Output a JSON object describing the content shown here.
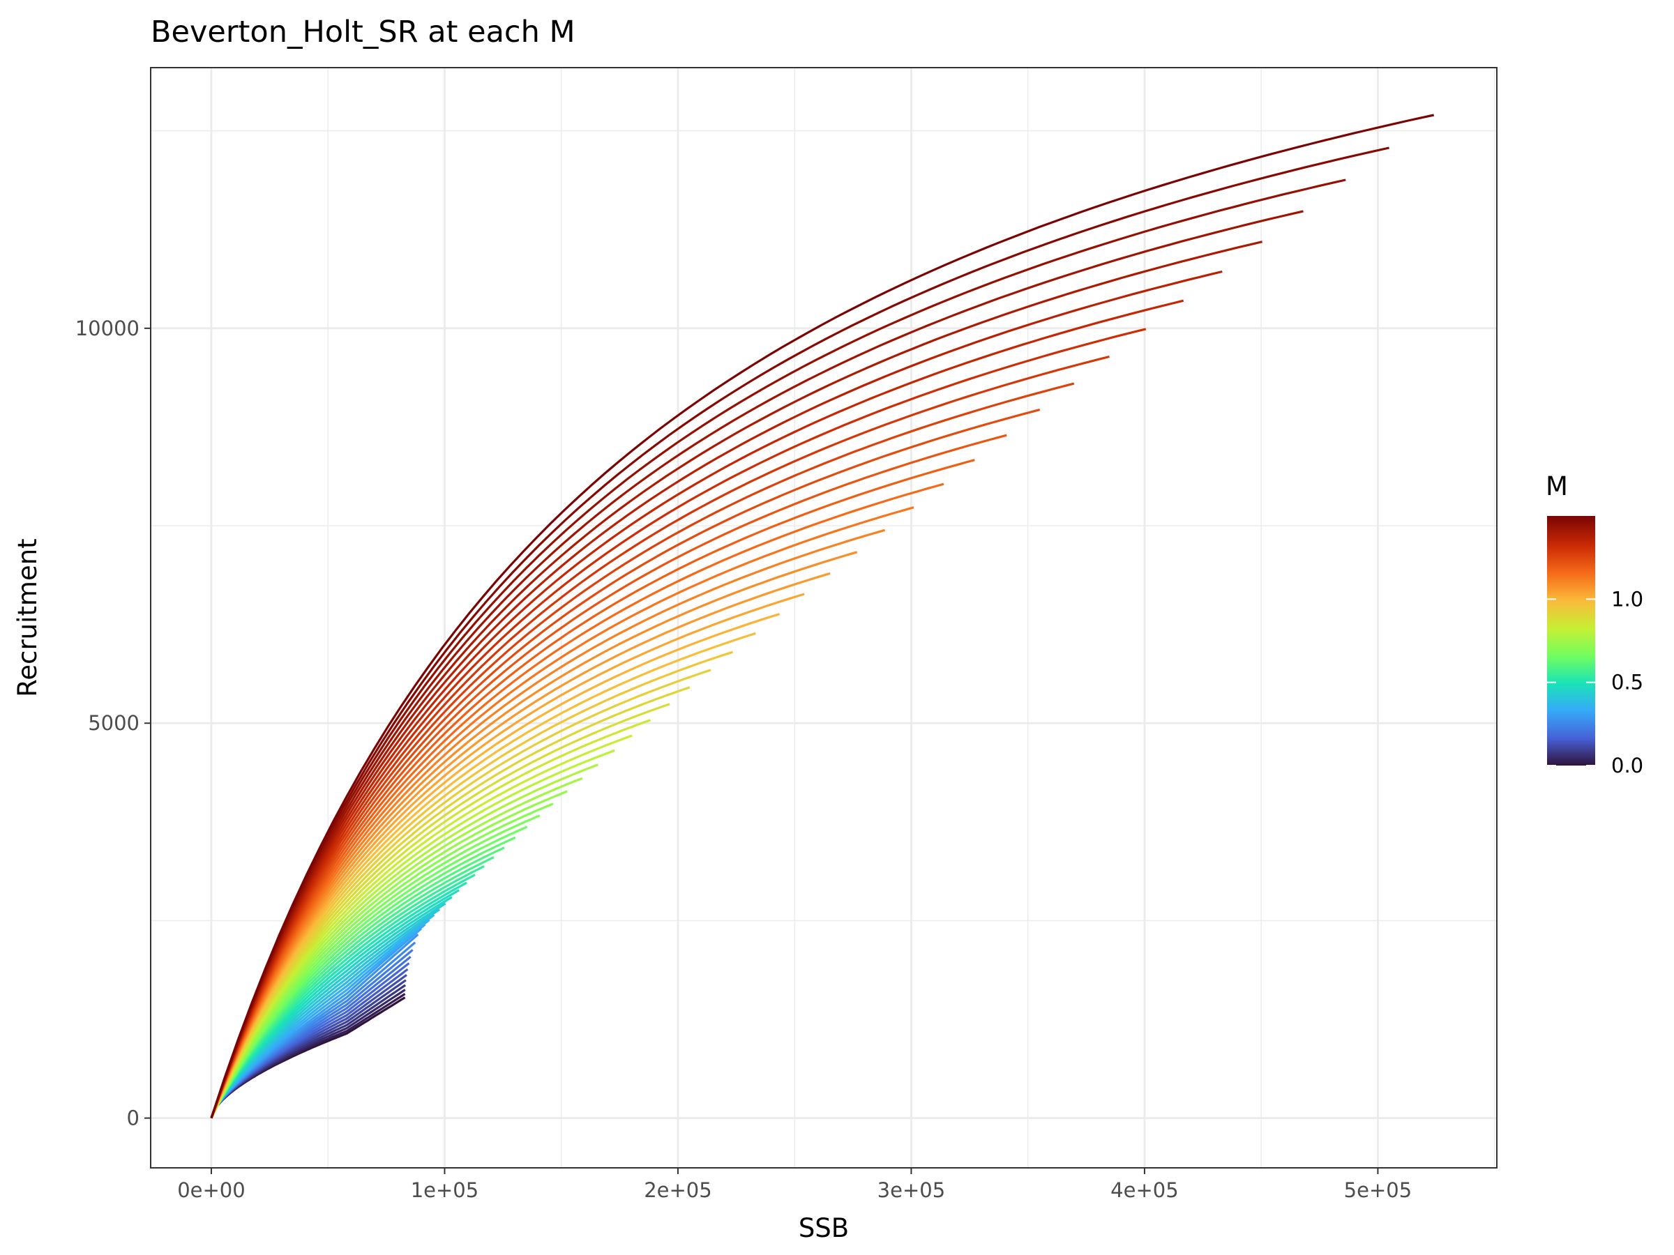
{
  "chart_data": {
    "type": "line",
    "title": "Beverton_Holt_SR at each M",
    "xlabel": "SSB",
    "ylabel": "Recruitment",
    "xlim": [
      -26000,
      551000
    ],
    "ylim": [
      -630,
      13300
    ],
    "x_ticks": [
      0,
      100000,
      200000,
      300000,
      400000,
      500000
    ],
    "x_tick_labels": [
      "0e+00",
      "1e+05",
      "2e+05",
      "3e+05",
      "4e+05",
      "5e+05"
    ],
    "y_ticks": [
      0,
      5000,
      10000
    ],
    "y_tick_labels": [
      "0",
      "5000",
      "10000"
    ],
    "grid": true,
    "legend": {
      "title": "M",
      "position": "right",
      "type": "colorbar",
      "range": [
        0,
        1.5
      ],
      "ticks": [
        0.0,
        0.5,
        1.0
      ],
      "tick_labels": [
        "0.0",
        "0.5",
        "1.0"
      ],
      "palette": [
        "#30123b",
        "#4662d7",
        "#36aaf9",
        "#1ae4b6",
        "#72fe5e",
        "#c7ef34",
        "#fabb3a",
        "#f66b19",
        "#cb2a04",
        "#7a0403"
      ]
    },
    "model": "Beverton-Holt: R = a*SSB/(1+b*SSB)",
    "series_summary": {
      "count": 60,
      "M_range": [
        0.0,
        1.5
      ],
      "endpoints_top_curves": [
        {
          "ssb_max": 524000,
          "r_max": 12700
        },
        {
          "ssb_max": 508000,
          "r_max": 12330
        },
        {
          "ssb_max": 492000,
          "r_max": 11950
        },
        {
          "ssb_max": 477000,
          "r_max": 11570
        },
        {
          "ssb_max": 463000,
          "r_max": 11240
        },
        {
          "ssb_max": 450000,
          "r_max": 10920
        },
        {
          "ssb_max": 437000,
          "r_max": 10580
        },
        {
          "ssb_max": 424000,
          "r_max": 10260
        },
        {
          "ssb_max": 412000,
          "r_max": 10000
        },
        {
          "ssb_max": 400000,
          "r_max": 9730
        },
        {
          "ssb_max": 389000,
          "r_max": 9470
        },
        {
          "ssb_max": 378000,
          "r_max": 9240
        },
        {
          "ssb_max": 367000,
          "r_max": 9000
        },
        {
          "ssb_max": 357000,
          "r_max": 8800
        },
        {
          "ssb_max": 347000,
          "r_max": 8600
        }
      ],
      "lowest_curve_kink": {
        "ssb": 58000,
        "r": 1070
      }
    }
  }
}
